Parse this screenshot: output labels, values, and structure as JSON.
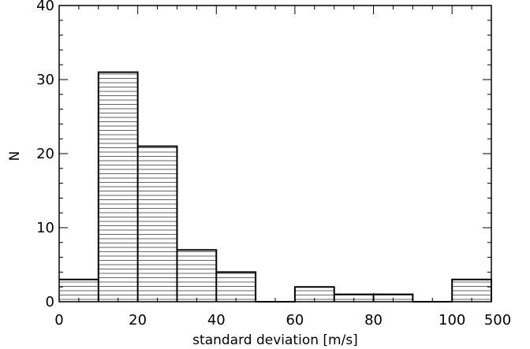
{
  "chart_data": {
    "type": "bar",
    "title": "",
    "xlabel": "standard deviation [m/s]",
    "ylabel": "N",
    "xlim": [
      0,
      110
    ],
    "ylim": [
      0,
      40
    ],
    "x_tick_labels": [
      "0",
      "20",
      "40",
      "60",
      "80",
      "100",
      "500"
    ],
    "y_tick_labels": [
      "0",
      "10",
      "20",
      "30",
      "40"
    ],
    "bin_edges": [
      0,
      10,
      20,
      30,
      40,
      50,
      60,
      70,
      80,
      90,
      100,
      110
    ],
    "values": [
      3,
      31,
      21,
      7,
      4,
      0,
      2,
      1,
      1,
      0,
      3
    ],
    "fill_pattern": "horizontal-hatch",
    "grid": false,
    "legend": "none",
    "colors": {
      "line": "#000000",
      "background": "#ffffff"
    }
  }
}
